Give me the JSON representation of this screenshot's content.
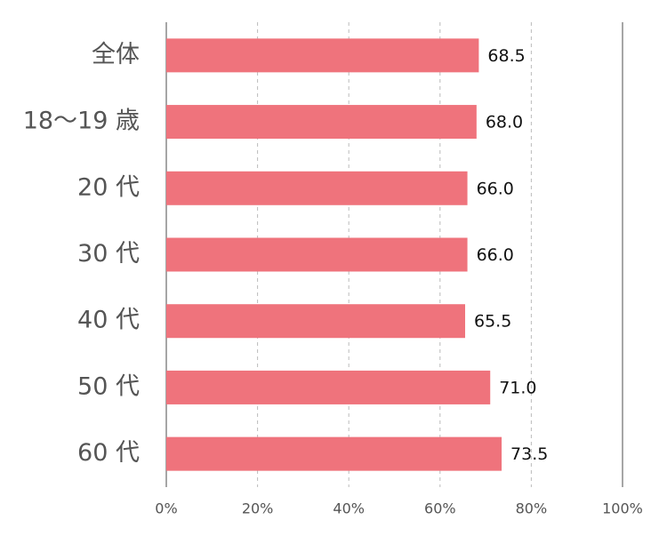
{
  "chart_data": {
    "type": "bar",
    "orientation": "horizontal",
    "categories": [
      "全体",
      "18～19 歳",
      "20 代",
      "30 代",
      "40 代",
      "50 代",
      "60 代"
    ],
    "values": [
      68.5,
      68,
      66,
      66,
      65.5,
      71,
      73.5
    ],
    "value_labels": [
      "68.5",
      "68.0",
      "66.0",
      "66.0",
      "65.5",
      "71.0",
      "73.5"
    ],
    "color": "#ef737c",
    "xlim": [
      0,
      100
    ],
    "xticks": [
      {
        "value": 0,
        "label": "0%"
      },
      {
        "value": 20,
        "label": "20%"
      },
      {
        "value": 40,
        "label": "40%"
      },
      {
        "value": 60,
        "label": "60%"
      },
      {
        "value": 80,
        "label": "80%"
      },
      {
        "value": 100,
        "label": "100%"
      }
    ],
    "grid": true
  }
}
